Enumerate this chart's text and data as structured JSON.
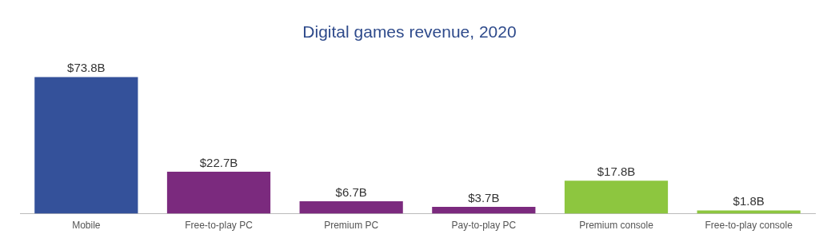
{
  "chart_data": {
    "type": "bar",
    "title": "Digital games revenue, 2020",
    "categories": [
      "Mobile",
      "Free-to-play PC",
      "Premium PC",
      "Pay-to-play PC",
      "Premium console",
      "Free-to-play console"
    ],
    "values": [
      73.8,
      22.7,
      6.7,
      3.7,
      17.8,
      1.8
    ],
    "colors": [
      "#34519a",
      "#7b2a7e",
      "#7b2a7e",
      "#7b2a7e",
      "#8dc63f",
      "#8dc63f"
    ],
    "value_labels": [
      "$73.8B",
      "$22.7B",
      "$6.7B",
      "$3.7B",
      "$17.8B",
      "$1.8B"
    ],
    "grid": false,
    "legend": false
  }
}
